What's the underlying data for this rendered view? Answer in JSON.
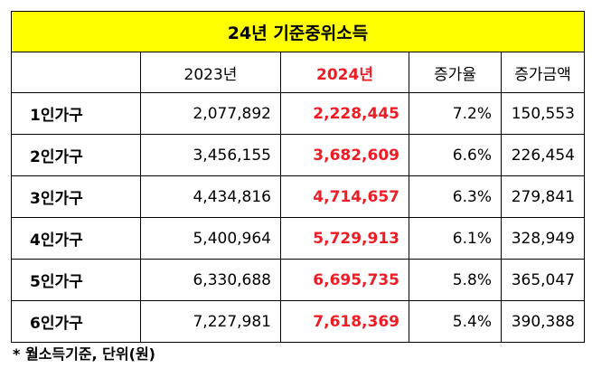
{
  "title": "24년 기준중위소득",
  "header_bg": "#ffff00",
  "highlight_color": "#ee1c25",
  "columns": [
    "",
    "2023년",
    "2024년",
    "증가율",
    "증가금액"
  ],
  "rows": [
    {
      "label": "1인가구",
      "y2023": "2,077,892",
      "y2024": "2,228,445",
      "rate": "7.2%",
      "increase": "150,553"
    },
    {
      "label": "2인가구",
      "y2023": "3,456,155",
      "y2024": "3,682,609",
      "rate": "6.6%",
      "increase": "226,454"
    },
    {
      "label": "3인가구",
      "y2023": "4,434,816",
      "y2024": "4,714,657",
      "rate": "6.3%",
      "increase": "279,841"
    },
    {
      "label": "4인가구",
      "y2023": "5,400,964",
      "y2024": "5,729,913",
      "rate": "6.1%",
      "increase": "328,949"
    },
    {
      "label": "5인가구",
      "y2023": "6,330,688",
      "y2024": "6,695,735",
      "rate": "5.8%",
      "increase": "365,047"
    },
    {
      "label": "6인가구",
      "y2023": "7,227,981",
      "y2024": "7,618,369",
      "rate": "5.4%",
      "increase": "390,388"
    }
  ],
  "footnote": "* 월소득기준, 단위(원)"
}
